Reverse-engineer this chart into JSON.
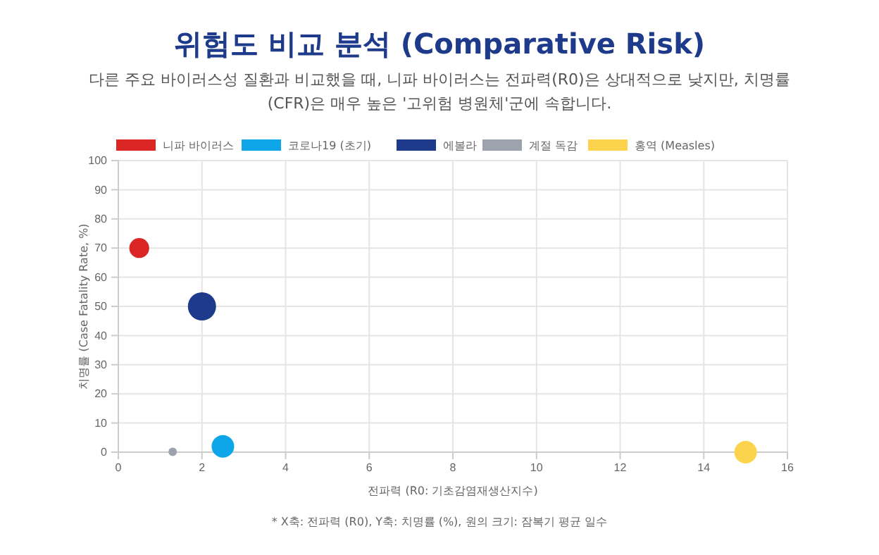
{
  "chart_data": {
    "type": "bubble",
    "title": "위험도 비교 분석 (Comparative Risk)",
    "subtitle": "다른 주요 바이러스성 질환과 비교했을 때, 니파 바이러스는 전파력(R0)은 상대적으로 낮지만, 치명률 (CFR)은 매우 높은 '고위험 병원체'군에 속합니다.",
    "xlabel": "전파력 (R0: 기초감염재생산지수)",
    "ylabel": "치명률 (Case Fatality Rate, %)",
    "annotations": [
      "* X축: 전파력 (R0), Y축: 치명률 (%), 원의 크기: 잠복기 평균 일수"
    ],
    "series": [
      {
        "name": "니파 바이러스",
        "color": "#dc2626",
        "x": [
          0.5
        ],
        "values": [
          70
        ],
        "sizes": [
          0.5
        ]
      },
      {
        "name": "코로나19 (초기)",
        "color": "#0ea5e9",
        "x": [
          2.5
        ],
        "values": [
          2
        ],
        "sizes": [
          0.64
        ]
      },
      {
        "name": "에볼라",
        "color": "#1e3a8a",
        "x": [
          2
        ],
        "values": [
          50
        ],
        "sizes": [
          1
        ]
      },
      {
        "name": "계절 독감",
        "color": "#9ca3af",
        "x": [
          1.3
        ],
        "values": [
          0.1
        ],
        "sizes": [
          0.09
        ]
      },
      {
        "name": "홍역 (Measles)",
        "color": "#fcd34d",
        "x": [
          15
        ],
        "values": [
          0
        ],
        "sizes": [
          0.64
        ]
      }
    ],
    "xlim": [
      0,
      16
    ],
    "xticks": [
      0,
      2,
      4,
      6,
      8,
      10,
      12,
      14,
      16
    ],
    "ylim": [
      0,
      100
    ],
    "yticks": [
      0,
      10,
      20,
      30,
      40,
      50,
      60,
      70,
      80,
      90,
      100
    ],
    "grid": true,
    "legend": "top",
    "marker": "circle"
  }
}
